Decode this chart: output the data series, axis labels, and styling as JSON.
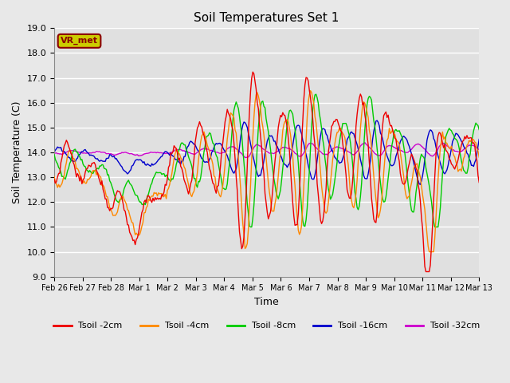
{
  "title": "Soil Temperatures Set 1",
  "xlabel": "Time",
  "ylabel": "Soil Temperature (C)",
  "ylim": [
    9.0,
    19.0
  ],
  "yticks": [
    9.0,
    10.0,
    11.0,
    12.0,
    13.0,
    14.0,
    15.0,
    16.0,
    17.0,
    18.0,
    19.0
  ],
  "background_color": "#e8e8e8",
  "plot_bg_color": "#e0e0e0",
  "grid_color": "#ffffff",
  "annotation_text": "VR_met",
  "annotation_bg": "#cccc00",
  "annotation_border": "#8b0000",
  "series_colors": {
    "Tsoil -2cm": "#ee0000",
    "Tsoil -4cm": "#ff8800",
    "Tsoil -8cm": "#00cc00",
    "Tsoil -16cm": "#0000cc",
    "Tsoil -32cm": "#cc00cc"
  },
  "xtick_labels": [
    "Feb 26",
    "Feb 27",
    "Feb 28",
    "Mar 1",
    "Mar 2",
    "Mar 3",
    "Mar 4",
    "Mar 5",
    "Mar 6",
    "Mar 7",
    "Mar 8",
    "Mar 9",
    "Mar 10",
    "Mar 11",
    "Mar 12",
    "Mar 13"
  ],
  "figsize": [
    6.4,
    4.8
  ],
  "dpi": 100
}
